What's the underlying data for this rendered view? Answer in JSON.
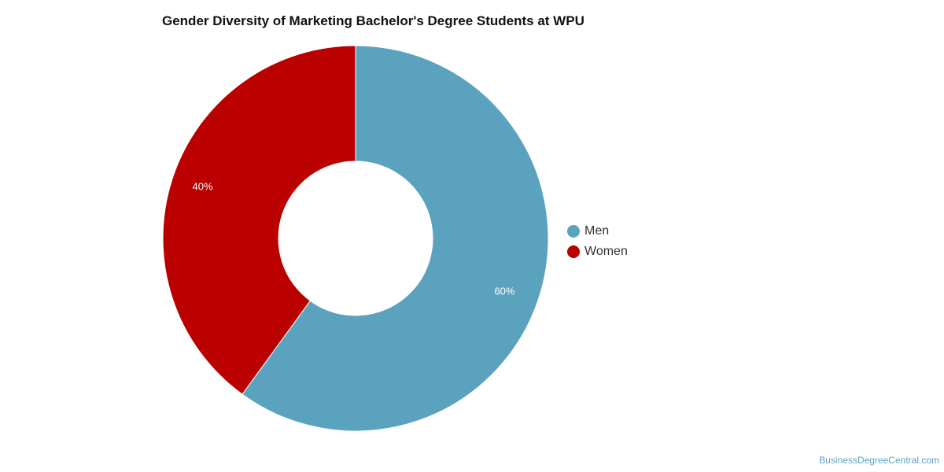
{
  "chart_data": {
    "type": "pie",
    "title": "Gender Diversity of Marketing Bachelor's Degree Students at WPU",
    "donut": true,
    "categories": [
      "Men",
      "Women"
    ],
    "values": [
      60,
      40
    ],
    "labels": [
      "60%",
      "40%"
    ],
    "colors": [
      "#5BA2BF",
      "#BB0000"
    ],
    "legend_placement": "right"
  },
  "credit": "BusinessDegreeCentral.com"
}
